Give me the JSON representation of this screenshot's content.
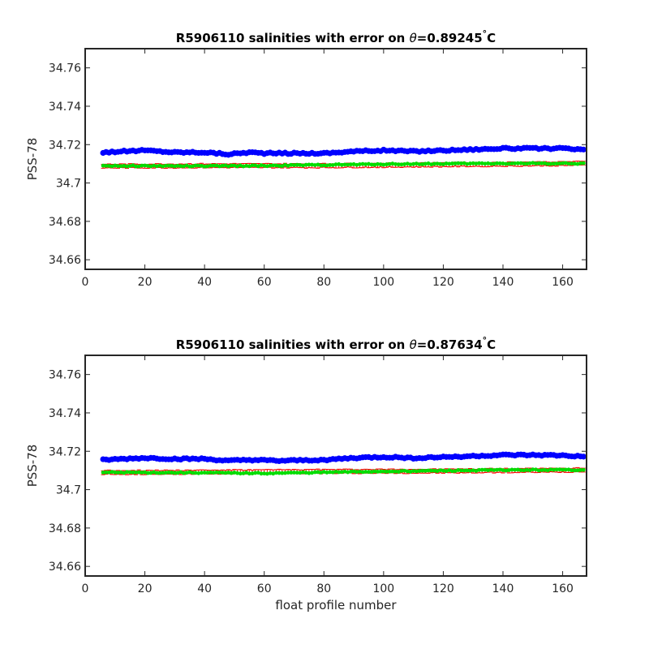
{
  "chart_data": [
    {
      "type": "scatter",
      "title": {
        "prefix": "R5906110 salinities with error on ",
        "symbol": "θ",
        "value": "=0.89245",
        "degree": "°",
        "unit": "C"
      },
      "xlabel": "",
      "ylabel": "PSS-78",
      "xlim": [
        0,
        168
      ],
      "ylim": [
        34.655,
        34.77
      ],
      "xticks": [
        0,
        20,
        40,
        60,
        80,
        100,
        120,
        140,
        160
      ],
      "yticks": [
        34.66,
        34.68,
        34.7,
        34.72,
        34.74,
        34.76
      ],
      "ytick_labels": [
        "34.66",
        "34.68",
        "34.7",
        "34.72",
        "34.74",
        "34.76"
      ],
      "x": {
        "start": 6,
        "end": 167,
        "step": 1
      },
      "series": [
        {
          "color": "#0000ff",
          "marker": "dot",
          "knots": [
            [
              6,
              34.716
            ],
            [
              20,
              34.717
            ],
            [
              30,
              34.716
            ],
            [
              40,
              34.716
            ],
            [
              48,
              34.715
            ],
            [
              55,
              34.716
            ],
            [
              60,
              34.7155
            ],
            [
              80,
              34.7155
            ],
            [
              90,
              34.7165
            ],
            [
              100,
              34.717
            ],
            [
              110,
              34.7165
            ],
            [
              120,
              34.717
            ],
            [
              130,
              34.7175
            ],
            [
              140,
              34.718
            ],
            [
              150,
              34.718
            ],
            [
              160,
              34.718
            ],
            [
              167,
              34.7172
            ]
          ],
          "jitter": 0.0004
        },
        {
          "color": "#ff0000",
          "marker": "errorbar",
          "errorbar": 0.001,
          "knots": [
            [
              6,
              34.7088
            ],
            [
              40,
              34.709
            ],
            [
              80,
              34.709
            ],
            [
              120,
              34.7095
            ],
            [
              167,
              34.7102
            ]
          ],
          "jitter": 0.0003
        },
        {
          "color": "#00dd00",
          "marker": "dot",
          "knots": [
            [
              6,
              34.709
            ],
            [
              40,
              34.7088
            ],
            [
              60,
              34.709
            ],
            [
              100,
              34.7098
            ],
            [
              140,
              34.7102
            ],
            [
              167,
              34.7102
            ]
          ],
          "jitter": 0.0003
        }
      ]
    },
    {
      "type": "scatter",
      "title": {
        "prefix": "R5906110 salinities with error on ",
        "symbol": "θ",
        "value": "=0.87634",
        "degree": "°",
        "unit": "C"
      },
      "xlabel": "float profile number",
      "ylabel": "PSS-78",
      "xlim": [
        0,
        168
      ],
      "ylim": [
        34.655,
        34.77
      ],
      "xticks": [
        0,
        20,
        40,
        60,
        80,
        100,
        120,
        140,
        160
      ],
      "yticks": [
        34.66,
        34.68,
        34.7,
        34.72,
        34.74,
        34.76
      ],
      "ytick_labels": [
        "34.66",
        "34.68",
        "34.7",
        "34.72",
        "34.74",
        "34.76"
      ],
      "x": {
        "start": 6,
        "end": 167,
        "step": 1
      },
      "series": [
        {
          "color": "#0000ff",
          "marker": "dot",
          "knots": [
            [
              6,
              34.7155
            ],
            [
              20,
              34.7165
            ],
            [
              30,
              34.716
            ],
            [
              40,
              34.716
            ],
            [
              48,
              34.715
            ],
            [
              55,
              34.7155
            ],
            [
              65,
              34.715
            ],
            [
              80,
              34.7155
            ],
            [
              90,
              34.7165
            ],
            [
              100,
              34.717
            ],
            [
              110,
              34.7165
            ],
            [
              120,
              34.717
            ],
            [
              130,
              34.7175
            ],
            [
              140,
              34.718
            ],
            [
              150,
              34.718
            ],
            [
              160,
              34.7178
            ],
            [
              167,
              34.7172
            ]
          ],
          "jitter": 0.0004
        },
        {
          "color": "#ff0000",
          "marker": "errorbar",
          "errorbar": 0.001,
          "knots": [
            [
              6,
              34.709
            ],
            [
              40,
              34.7092
            ],
            [
              80,
              34.7095
            ],
            [
              120,
              34.7097
            ],
            [
              167,
              34.7102
            ]
          ],
          "jitter": 0.0003
        },
        {
          "color": "#00dd00",
          "marker": "dot",
          "knots": [
            [
              6,
              34.709
            ],
            [
              40,
              34.7088
            ],
            [
              60,
              34.7085
            ],
            [
              80,
              34.709
            ],
            [
              100,
              34.7095
            ],
            [
              140,
              34.7102
            ],
            [
              167,
              34.7103
            ]
          ],
          "jitter": 0.0003
        }
      ]
    }
  ]
}
